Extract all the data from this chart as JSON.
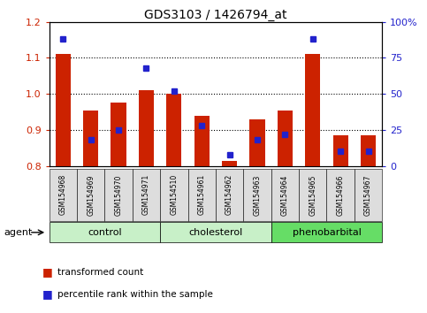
{
  "title": "GDS3103 / 1426794_at",
  "samples": [
    "GSM154968",
    "GSM154969",
    "GSM154970",
    "GSM154971",
    "GSM154510",
    "GSM154961",
    "GSM154962",
    "GSM154963",
    "GSM154964",
    "GSM154965",
    "GSM154966",
    "GSM154967"
  ],
  "transformed_count": [
    1.11,
    0.955,
    0.975,
    1.01,
    1.0,
    0.94,
    0.815,
    0.93,
    0.955,
    1.11,
    0.885,
    0.885
  ],
  "percentile_rank": [
    88,
    18,
    25,
    68,
    52,
    28,
    8,
    18,
    22,
    88,
    10,
    10
  ],
  "bar_bottom": 0.8,
  "ylim_left": [
    0.8,
    1.2
  ],
  "ylim_right": [
    0,
    100
  ],
  "yticks_left": [
    0.8,
    0.9,
    1.0,
    1.1,
    1.2
  ],
  "yticks_right": [
    0,
    25,
    50,
    75,
    100
  ],
  "ytick_labels_right": [
    "0",
    "25",
    "50",
    "75",
    "100%"
  ],
  "groups": [
    {
      "label": "control",
      "start": 0,
      "end": 4,
      "color": "#c8f0c8"
    },
    {
      "label": "cholesterol",
      "start": 4,
      "end": 8,
      "color": "#c8f0c8"
    },
    {
      "label": "phenobarbital",
      "start": 8,
      "end": 12,
      "color": "#66dd66"
    }
  ],
  "agent_label": "agent",
  "bar_color_red": "#cc2200",
  "bar_color_blue": "#2222cc",
  "tick_label_color_left": "#cc2200",
  "tick_label_color_right": "#2222cc",
  "legend_items": [
    {
      "label": "transformed count",
      "color": "#cc2200"
    },
    {
      "label": "percentile rank within the sample",
      "color": "#2222cc"
    }
  ],
  "bar_width": 0.55,
  "dotted_line_values": [
    0.9,
    1.0,
    1.1
  ]
}
